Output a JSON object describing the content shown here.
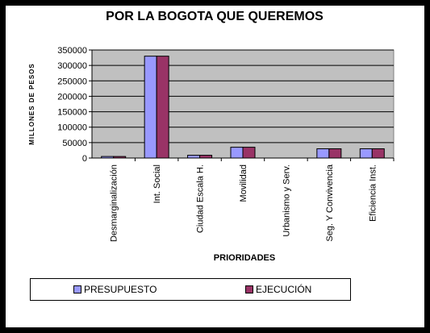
{
  "chart_data": {
    "type": "bar",
    "title": "POR LA BOGOTA QUE QUEREMOS",
    "xlabel": "PRIORIDADES",
    "ylabel": "MILLONES DE PESOS",
    "ylim": [
      0,
      350000
    ],
    "yticks": [
      0,
      50000,
      100000,
      150000,
      200000,
      250000,
      300000,
      350000
    ],
    "grid": true,
    "legend_position": "bottom",
    "categories": [
      "Desmarginalización",
      "Int. Social",
      "Ciudad Escala H.",
      "Movilidad",
      "Urbanismo y Serv.",
      "Seg. Y Convivencia",
      "Eficiencia Inst."
    ],
    "series": [
      {
        "name": "PRESUPUESTO",
        "color": "#9999ff",
        "values": [
          5000,
          330000,
          9000,
          35000,
          0,
          30000,
          30000
        ]
      },
      {
        "name": "EJECUCIÓN",
        "color": "#993366",
        "values": [
          5000,
          330000,
          9000,
          35000,
          0,
          30000,
          30000
        ]
      }
    ],
    "plot_background": "#c0c0c0"
  }
}
